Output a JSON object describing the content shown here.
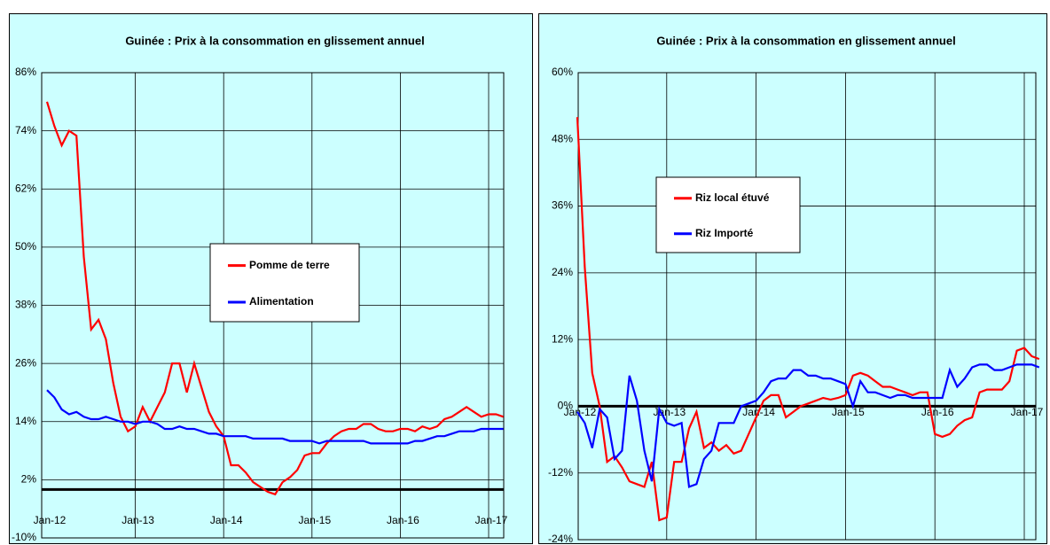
{
  "chart_data": [
    {
      "type": "line",
      "title": "Guinée : Prix à la consommation en glissement annuel",
      "categories": [
        "Jan-12",
        null,
        null,
        null,
        null,
        null,
        null,
        null,
        null,
        null,
        null,
        null,
        "Jan-13",
        null,
        null,
        null,
        null,
        null,
        null,
        null,
        null,
        null,
        null,
        null,
        "Jan-14",
        null,
        null,
        null,
        null,
        null,
        null,
        null,
        null,
        null,
        null,
        null,
        "Jan-15",
        null,
        null,
        null,
        null,
        null,
        null,
        null,
        null,
        null,
        null,
        null,
        "Jan-16",
        null,
        null,
        null,
        null,
        null,
        null,
        null,
        null,
        null,
        null,
        null,
        "Jan-17",
        null,
        null
      ],
      "series": [
        {
          "name": "Pomme de terre",
          "color": "#ff0000",
          "values": [
            80,
            75,
            71,
            74,
            73,
            48,
            33,
            35,
            31,
            22,
            15,
            12,
            13,
            17,
            14,
            17,
            20,
            26,
            26,
            20,
            26,
            21,
            16,
            13,
            11,
            5,
            5,
            3.5,
            1.5,
            0.5,
            -0.5,
            -1,
            1.5,
            2.5,
            4,
            7,
            7.5,
            7.5,
            9.5,
            11,
            12,
            12.5,
            12.5,
            13.5,
            13.5,
            12.5,
            12,
            12,
            12.5,
            12.5,
            12,
            13,
            12.5,
            13,
            14.5,
            15,
            16,
            17,
            16,
            15,
            15.5,
            15.5,
            15
          ]
        },
        {
          "name": "Alimentation",
          "color": "#0000ff",
          "values": [
            20.5,
            19,
            16.5,
            15.5,
            16,
            15,
            14.5,
            14.5,
            15,
            14.5,
            14,
            14,
            13.5,
            14,
            14,
            13.5,
            12.5,
            12.5,
            13,
            12.5,
            12.5,
            12,
            11.5,
            11.5,
            11,
            11,
            11,
            11,
            10.5,
            10.5,
            10.5,
            10.5,
            10.5,
            10,
            10,
            10,
            10,
            9.5,
            10,
            10,
            10,
            10,
            10,
            10,
            9.5,
            9.5,
            9.5,
            9.5,
            9.5,
            9.5,
            10,
            10,
            10.5,
            11,
            11,
            11.5,
            12,
            12,
            12,
            12.5,
            12.5,
            12.5,
            12.5
          ]
        }
      ],
      "ylim": [
        -10,
        86
      ],
      "yticks": [
        {
          "value": 86,
          "label": "86%"
        },
        {
          "value": 74,
          "label": "74%"
        },
        {
          "value": 62,
          "label": "62%"
        },
        {
          "value": 50,
          "label": "50%"
        },
        {
          "value": 38,
          "label": "38%"
        },
        {
          "value": 26,
          "label": "26%"
        },
        {
          "value": 14,
          "label": "14%"
        },
        {
          "value": 2,
          "label": "2%"
        },
        {
          "value": -10,
          "label": "-10%"
        }
      ],
      "grid": true
    },
    {
      "type": "line",
      "title": "Guinée : Prix à la consommation en glissement annuel",
      "categories": [
        "Jan-12",
        null,
        null,
        null,
        null,
        null,
        null,
        null,
        null,
        null,
        null,
        null,
        "Jan-13",
        null,
        null,
        null,
        null,
        null,
        null,
        null,
        null,
        null,
        null,
        null,
        "Jan-14",
        null,
        null,
        null,
        null,
        null,
        null,
        null,
        null,
        null,
        null,
        null,
        "Jan-15",
        null,
        null,
        null,
        null,
        null,
        null,
        null,
        null,
        null,
        null,
        null,
        "Jan-16",
        null,
        null,
        null,
        null,
        null,
        null,
        null,
        null,
        null,
        null,
        null,
        "Jan-17",
        null,
        null
      ],
      "series": [
        {
          "name": "Riz local étuvé",
          "color": "#ff0000",
          "values": [
            52,
            25,
            6,
            0,
            -10,
            -9,
            -11,
            -13.5,
            -14,
            -14.5,
            -10,
            -20.5,
            -20,
            -10,
            -10,
            -4,
            -1,
            -7.5,
            -6.5,
            -8,
            -7,
            -8.5,
            -8,
            -5,
            -2,
            1,
            2,
            2,
            -2,
            -1,
            0,
            0.5,
            1,
            1.5,
            1.2,
            1.5,
            2,
            5.5,
            6,
            5.5,
            4.5,
            3.5,
            3.5,
            3,
            2.5,
            2,
            2.5,
            2.5,
            -5,
            -5.5,
            -5,
            -3.5,
            -2.5,
            -2,
            2.5,
            3,
            3,
            3,
            4.5,
            10,
            10.5,
            9,
            8.5
          ]
        },
        {
          "name": "Riz Importé",
          "color": "#0000ff",
          "values": [
            -1,
            -3,
            -7.5,
            -0.5,
            -2,
            -9.5,
            -8,
            5.5,
            1,
            -8,
            -13.5,
            -0.5,
            -3,
            -3.5,
            -3,
            -14.5,
            -14,
            -9.5,
            -8,
            -3,
            -3,
            -3,
            0,
            0.5,
            1,
            2.5,
            4.5,
            5,
            5,
            6.5,
            6.5,
            5.5,
            5.5,
            5,
            5,
            4.5,
            4,
            0,
            4.5,
            2.5,
            2.5,
            2,
            1.5,
            2,
            2,
            1.5,
            1.5,
            1.5,
            1.5,
            1.5,
            6.5,
            3.5,
            5,
            7,
            7.5,
            7.5,
            6.5,
            6.5,
            7,
            7.5,
            7.5,
            7.5,
            7
          ]
        }
      ],
      "ylim": [
        -24,
        60
      ],
      "yticks": [
        {
          "value": 60,
          "label": "60%"
        },
        {
          "value": 48,
          "label": "48%"
        },
        {
          "value": 36,
          "label": "36%"
        },
        {
          "value": 24,
          "label": "24%"
        },
        {
          "value": 12,
          "label": "12%"
        },
        {
          "value": 0,
          "label": "0%"
        },
        {
          "value": -12,
          "label": "-12%"
        },
        {
          "value": -24,
          "label": "-24%"
        }
      ],
      "grid": true
    }
  ]
}
